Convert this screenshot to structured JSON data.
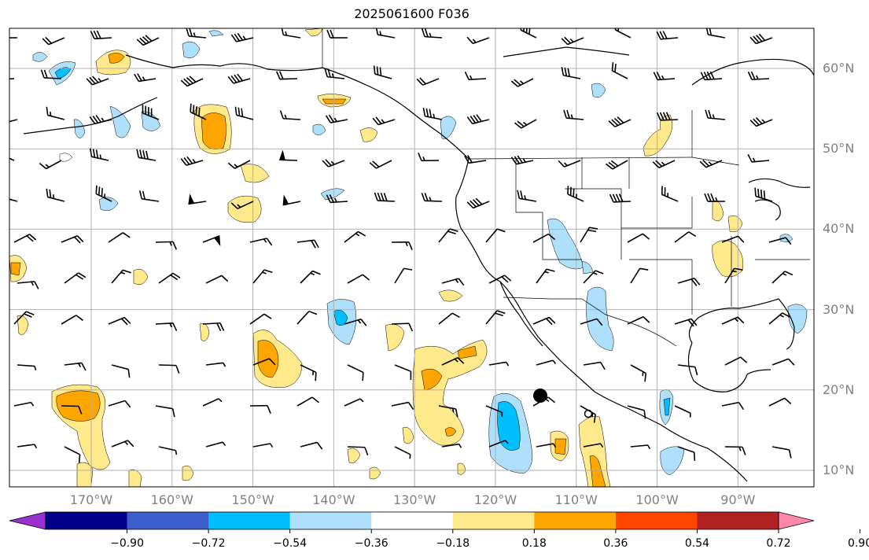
{
  "title": "2025061600 F036",
  "lat_labels": [
    {
      "text": "60°N",
      "lat": 60
    },
    {
      "text": "50°N",
      "lat": 50
    },
    {
      "text": "40°N",
      "lat": 40
    },
    {
      "text": "30°N",
      "lat": 30
    },
    {
      "text": "20°N",
      "lat": 20
    },
    {
      "text": "10°N",
      "lat": 10
    }
  ],
  "lon_labels": [
    {
      "text": "170°W",
      "lon": -170
    },
    {
      "text": "160°W",
      "lon": -160
    },
    {
      "text": "150°W",
      "lon": -150
    },
    {
      "text": "140°W",
      "lon": -140
    },
    {
      "text": "130°W",
      "lon": -130
    },
    {
      "text": "120°W",
      "lon": -120
    },
    {
      "text": "110°W",
      "lon": -110
    },
    {
      "text": "100°W",
      "lon": -100
    },
    {
      "text": "90°W",
      "lon": -90
    }
  ],
  "colorbar": {
    "ticks": [
      "−0.90",
      "−0.72",
      "−0.54",
      "−0.36",
      "−0.18",
      "0.18",
      "0.36",
      "0.54",
      "0.72",
      "0.90"
    ],
    "colors": [
      "#9932cc",
      "#00008b",
      "#3a5fcd",
      "#00bfff",
      "#afe0fb",
      "#ffffff",
      "#ffe98a",
      "#ffa500",
      "#ff4500",
      "#b22222",
      "#ff88aa"
    ]
  },
  "map": {
    "lon_range": [
      -180,
      -80
    ],
    "lat_range": [
      8,
      65
    ],
    "grid": true,
    "fill_colors": {
      "pos1": "#ffe98a",
      "pos2": "#ffa500",
      "neg1": "#afe0fb",
      "neg2": "#00bfff"
    },
    "marks": [
      "large-filled-dot",
      "small-open-circle"
    ]
  }
}
